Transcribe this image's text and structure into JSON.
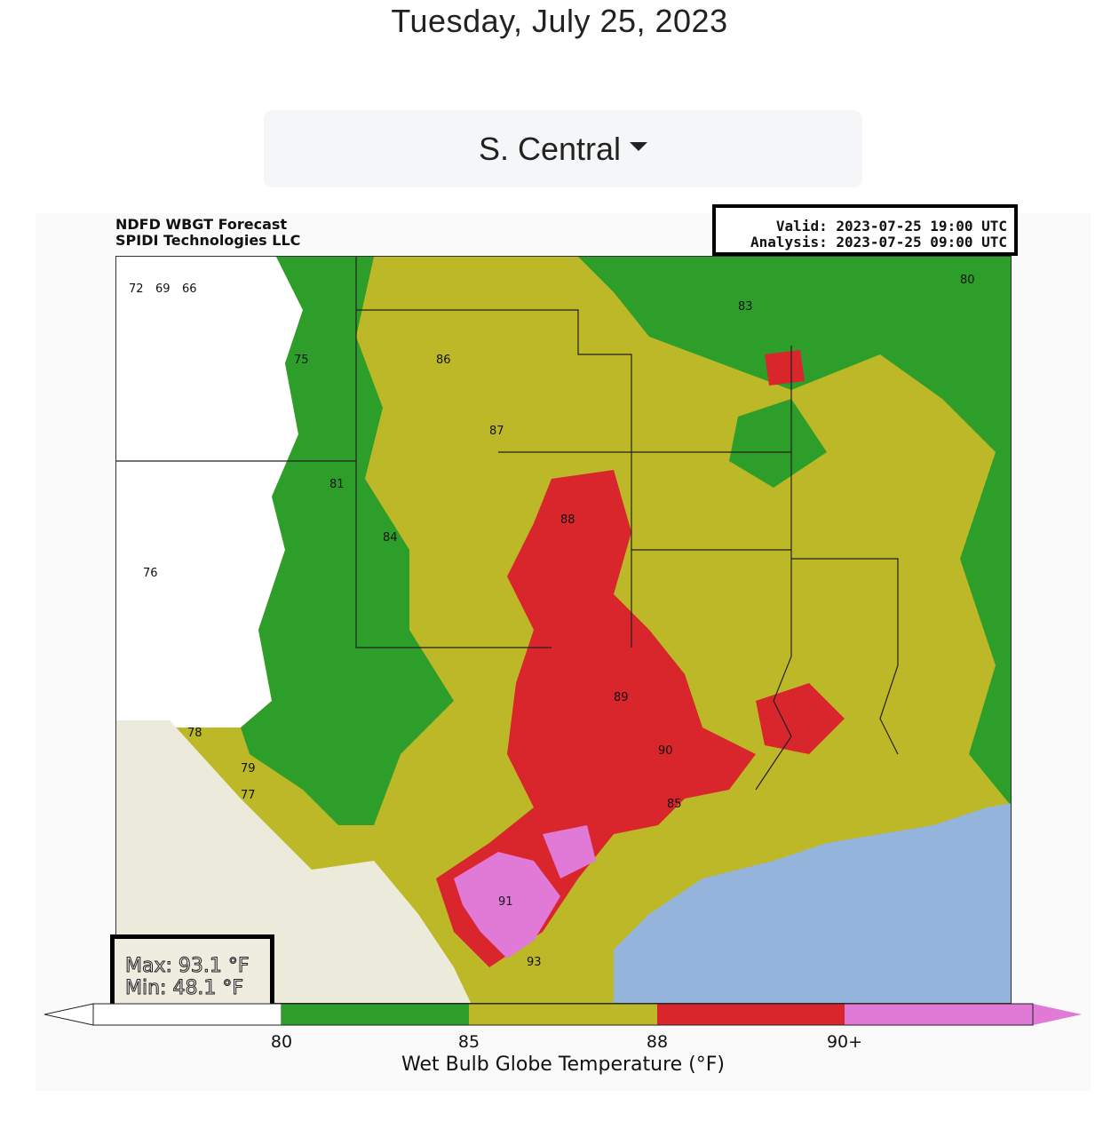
{
  "page": {
    "date": "Tuesday, July 25, 2023",
    "region_selector": {
      "selected": "S. Central"
    }
  },
  "map": {
    "title_line1": "NDFD WBGT Forecast",
    "title_line2": "SPIDI Technologies LLC",
    "valid": "Valid: 2023-07-25 19:00 UTC",
    "analysis": "Analysis: 2023-07-25 09:00 UTC",
    "stats": {
      "max": "Max: 93.1 °F",
      "min": "Min: 48.1 °F"
    },
    "colors": {
      "below_80": "#ffffff",
      "80_85": "#2e9e2a",
      "85_88": "#bdb828",
      "88_90": "#d9252c",
      "90_plus": "#e07ad6",
      "water": "#94b4dc",
      "land_outside": "#ecebdb"
    },
    "sample_values": [
      "72",
      "69",
      "66",
      "75",
      "81",
      "84",
      "86",
      "87",
      "88",
      "89",
      "90",
      "91",
      "85",
      "83",
      "80",
      "79",
      "78",
      "77",
      "76",
      "93"
    ]
  },
  "colorbar": {
    "ticks": [
      "80",
      "85",
      "88",
      "90+"
    ],
    "label": "Wet Bulb Globe Temperature (°F)"
  }
}
